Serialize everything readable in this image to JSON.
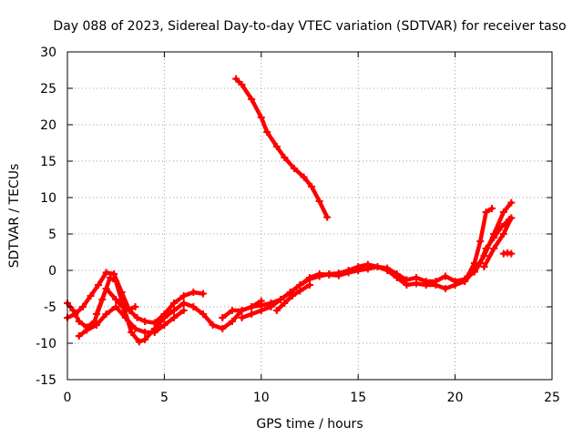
{
  "chart_data": {
    "type": "scatter",
    "title": "Day 088 of 2023, Sidereal Day-to-day VTEC variation (SDTVAR) for receiver taso",
    "xlabel": "GPS time / hours",
    "ylabel": "SDTVAR / TECUs",
    "xlim": [
      0,
      25
    ],
    "ylim": [
      -15,
      30
    ],
    "xticks": [
      0,
      5,
      10,
      15,
      20,
      25
    ],
    "yticks": [
      -15,
      -10,
      -5,
      0,
      5,
      10,
      15,
      20,
      25,
      30
    ],
    "grid": true,
    "color": "#ff0000",
    "series": [
      {
        "name": "track-early-a",
        "values": [
          [
            0.0,
            -4.5
          ],
          [
            0.3,
            -5.5
          ],
          [
            0.6,
            -7.0
          ],
          [
            1.0,
            -7.8
          ],
          [
            1.4,
            -7.0
          ],
          [
            1.8,
            -4.0
          ],
          [
            2.2,
            -1.0
          ],
          [
            2.5,
            -1.5
          ],
          [
            2.9,
            -5.0
          ],
          [
            3.3,
            -8.5
          ],
          [
            3.7,
            -9.8
          ],
          [
            4.0,
            -9.5
          ],
          [
            4.5,
            -8.0
          ],
          [
            5.0,
            -6.5
          ],
          [
            5.5,
            -5.5
          ],
          [
            6.0,
            -4.5
          ],
          [
            6.5,
            -5.0
          ],
          [
            7.0,
            -6.0
          ],
          [
            7.5,
            -7.5
          ],
          [
            8.0,
            -8.0
          ],
          [
            8.5,
            -7.0
          ],
          [
            9.0,
            -5.5
          ],
          [
            9.5,
            -5.0
          ],
          [
            10.0,
            -4.2
          ]
        ]
      },
      {
        "name": "track-early-b",
        "values": [
          [
            0.0,
            -6.5
          ],
          [
            0.4,
            -6.0
          ],
          [
            0.8,
            -5.0
          ],
          [
            1.2,
            -3.5
          ],
          [
            1.6,
            -2.0
          ],
          [
            2.0,
            -0.3
          ],
          [
            2.4,
            -0.5
          ],
          [
            2.8,
            -3.0
          ],
          [
            3.2,
            -5.5
          ],
          [
            3.6,
            -6.5
          ],
          [
            4.0,
            -7.0
          ],
          [
            4.5,
            -7.2
          ],
          [
            5.0,
            -6.0
          ],
          [
            5.5,
            -4.5
          ],
          [
            6.0,
            -3.5
          ],
          [
            6.5,
            -3.0
          ],
          [
            7.0,
            -3.2
          ]
        ]
      },
      {
        "name": "track-early-c",
        "values": [
          [
            0.6,
            -9.0
          ],
          [
            1.0,
            -8.2
          ],
          [
            1.5,
            -7.5
          ],
          [
            2.0,
            -6.0
          ],
          [
            2.5,
            -5.0
          ],
          [
            3.0,
            -6.5
          ],
          [
            3.5,
            -8.0
          ],
          [
            4.0,
            -8.5
          ],
          [
            4.5,
            -8.5
          ],
          [
            5.0,
            -7.5
          ],
          [
            5.5,
            -6.5
          ],
          [
            6.0,
            -5.5
          ]
        ]
      },
      {
        "name": "track-early-d",
        "values": [
          [
            1.5,
            -6.0
          ],
          [
            2.0,
            -2.5
          ],
          [
            2.5,
            -4.0
          ],
          [
            3.0,
            -5.5
          ],
          [
            3.5,
            -5.0
          ]
        ]
      },
      {
        "name": "track-high",
        "values": [
          [
            8.7,
            26.3
          ],
          [
            9.0,
            25.5
          ],
          [
            9.5,
            23.5
          ],
          [
            10.0,
            21.0
          ],
          [
            10.3,
            19.0
          ],
          [
            10.8,
            17.0
          ],
          [
            11.2,
            15.5
          ],
          [
            11.7,
            14.0
          ],
          [
            12.2,
            12.8
          ],
          [
            12.6,
            11.5
          ],
          [
            13.0,
            9.5
          ],
          [
            13.4,
            7.3
          ]
        ]
      },
      {
        "name": "track-mid",
        "values": [
          [
            8.0,
            -6.5
          ],
          [
            8.5,
            -5.5
          ],
          [
            9.0,
            -5.5
          ],
          [
            9.5,
            -5.0
          ],
          [
            10.0,
            -4.8
          ],
          [
            10.5,
            -4.5
          ],
          [
            11.0,
            -4.0
          ],
          [
            11.5,
            -3.0
          ],
          [
            12.0,
            -2.0
          ],
          [
            12.5,
            -1.0
          ],
          [
            13.0,
            -0.5
          ],
          [
            13.5,
            -0.6
          ],
          [
            14.0,
            -0.7
          ],
          [
            14.5,
            -0.3
          ],
          [
            15.0,
            0.0
          ],
          [
            15.5,
            0.2
          ],
          [
            16.0,
            0.5
          ],
          [
            16.5,
            0.3
          ],
          [
            17.0,
            -0.5
          ],
          [
            17.5,
            -1.3
          ],
          [
            18.0,
            -1.0
          ],
          [
            18.5,
            -1.5
          ],
          [
            19.0,
            -1.5
          ],
          [
            19.5,
            -0.8
          ],
          [
            20.0,
            -1.5
          ],
          [
            20.5,
            -1.2
          ],
          [
            21.0,
            -0.2
          ],
          [
            21.3,
            1.0
          ],
          [
            21.6,
            3.0
          ],
          [
            22.0,
            4.5
          ],
          [
            22.4,
            6.0
          ],
          [
            22.8,
            7.0
          ]
        ]
      },
      {
        "name": "track-mid-b",
        "values": [
          [
            9.0,
            -6.5
          ],
          [
            9.5,
            -6.0
          ],
          [
            10.0,
            -5.5
          ],
          [
            10.5,
            -5.0
          ],
          [
            11.0,
            -4.0
          ],
          [
            11.5,
            -3.0
          ],
          [
            12.0,
            -2.0
          ],
          [
            12.5,
            -1.2
          ],
          [
            13.0,
            -0.8
          ],
          [
            13.5,
            -0.5
          ],
          [
            14.0,
            -0.4
          ],
          [
            14.5,
            0.0
          ],
          [
            15.0,
            0.5
          ],
          [
            15.5,
            0.8
          ],
          [
            16.0,
            0.5
          ],
          [
            16.5,
            0.0
          ],
          [
            17.0,
            -1.0
          ],
          [
            17.5,
            -2.0
          ],
          [
            18.0,
            -1.8
          ],
          [
            18.5,
            -2.0
          ],
          [
            19.0,
            -2.0
          ],
          [
            19.5,
            -2.5
          ],
          [
            20.0,
            -2.0
          ],
          [
            20.5,
            -1.5
          ],
          [
            21.0,
            0.0
          ],
          [
            21.5,
            2.0
          ],
          [
            22.0,
            5.0
          ],
          [
            22.5,
            8.0
          ],
          [
            22.9,
            9.3
          ]
        ]
      },
      {
        "name": "track-late",
        "values": [
          [
            20.5,
            -1.5
          ],
          [
            21.0,
            1.0
          ],
          [
            21.3,
            4.0
          ],
          [
            21.6,
            8.0
          ],
          [
            21.9,
            8.5
          ]
        ]
      },
      {
        "name": "track-late-b",
        "values": [
          [
            21.5,
            0.5
          ],
          [
            22.0,
            3.0
          ],
          [
            22.5,
            5.0
          ],
          [
            22.9,
            7.2
          ]
        ]
      },
      {
        "name": "track-late-c",
        "values": [
          [
            22.5,
            2.3
          ],
          [
            22.7,
            2.4
          ],
          [
            22.9,
            2.3
          ]
        ]
      },
      {
        "name": "track-mid-c",
        "values": [
          [
            10.8,
            -5.5
          ],
          [
            11.2,
            -4.5
          ],
          [
            11.6,
            -3.5
          ],
          [
            12.0,
            -2.8
          ],
          [
            12.5,
            -2.0
          ]
        ]
      }
    ]
  }
}
